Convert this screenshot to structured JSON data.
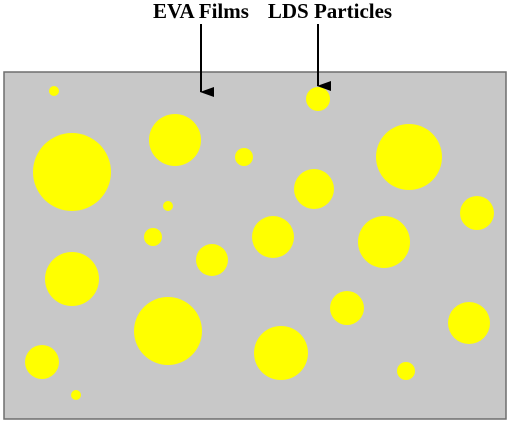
{
  "labels": {
    "film": "EVA Films",
    "particles": "LDS Particles"
  },
  "colors": {
    "film_fill": "#c8c8c8",
    "film_border": "#6e6e6e",
    "particle_fill": "#ffff00",
    "arrow": "#000000",
    "text": "#000000"
  }
}
